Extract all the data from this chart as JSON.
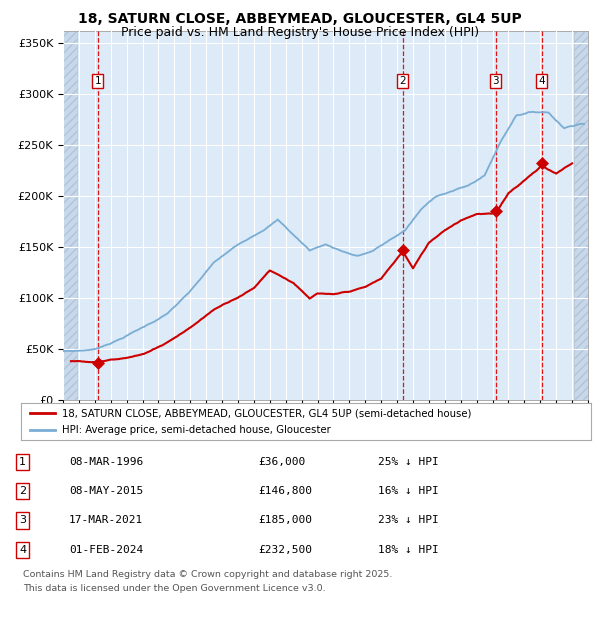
{
  "title_line1": "18, SATURN CLOSE, ABBEYMEAD, GLOUCESTER, GL4 5UP",
  "title_line2": "Price paid vs. HM Land Registry's House Price Index (HPI)",
  "title_fontsize": 10.0,
  "subtitle_fontsize": 9.0,
  "ylabel_ticks": [
    "£0",
    "£50K",
    "£100K",
    "£150K",
    "£200K",
    "£250K",
    "£300K",
    "£350K"
  ],
  "ylabel_values": [
    0,
    50000,
    100000,
    150000,
    200000,
    250000,
    300000,
    350000
  ],
  "ylim": [
    0,
    362000
  ],
  "xlim_start": 1994.0,
  "xlim_end": 2027.0,
  "sale_points": [
    {
      "label": "1",
      "date": 1996.19,
      "price": 36000,
      "text": "08-MAR-1996",
      "amount": "£36,000",
      "pct": "25% ↓ HPI"
    },
    {
      "label": "2",
      "date": 2015.36,
      "price": 146800,
      "text": "08-MAY-2015",
      "amount": "£146,800",
      "pct": "16% ↓ HPI"
    },
    {
      "label": "3",
      "date": 2021.21,
      "price": 185000,
      "text": "17-MAR-2021",
      "amount": "£185,000",
      "pct": "23% ↓ HPI"
    },
    {
      "label": "4",
      "date": 2024.08,
      "price": 232500,
      "text": "01-FEB-2024",
      "amount": "£232,500",
      "pct": "18% ↓ HPI"
    }
  ],
  "hpi_color": "#7aadd4",
  "price_color": "#cc0000",
  "marker_color": "#cc0000",
  "bg_color": "#ddeaf7",
  "grid_color": "#ffffff",
  "hatch_color": "#c8d8ea",
  "vline_color": "#dd0000",
  "label_bg": "#ffffff",
  "label_border": "#cc0000",
  "legend_label1": "18, SATURN CLOSE, ABBEYMEAD, GLOUCESTER, GL4 5UP (semi-detached house)",
  "legend_label2": "HPI: Average price, semi-detached house, Gloucester",
  "footer_line1": "Contains HM Land Registry data © Crown copyright and database right 2025.",
  "footer_line2": "This data is licensed under the Open Government Licence v3.0.",
  "hpi_waypoints_x": [
    1994.0,
    1995.0,
    1996.0,
    1997.5,
    1999.0,
    2000.5,
    2002.0,
    2003.5,
    2005.0,
    2006.5,
    2007.5,
    2008.5,
    2009.5,
    2010.5,
    2011.5,
    2012.5,
    2013.5,
    2014.5,
    2015.5,
    2016.5,
    2017.5,
    2018.5,
    2019.5,
    2020.5,
    2021.5,
    2022.5,
    2023.5,
    2024.5,
    2025.5,
    2026.5
  ],
  "hpi_waypoints_y": [
    48000,
    48500,
    50000,
    60000,
    72000,
    85000,
    107000,
    135000,
    152000,
    167000,
    178000,
    163000,
    148000,
    154000,
    148000,
    143000,
    148000,
    158000,
    168000,
    188000,
    202000,
    207000,
    212000,
    222000,
    255000,
    282000,
    285000,
    285000,
    270000,
    275000
  ],
  "price_waypoints_x": [
    1994.5,
    1996.19,
    1997.0,
    1998.0,
    1999.0,
    2000.5,
    2002.0,
    2003.5,
    2005.0,
    2006.0,
    2007.0,
    2008.5,
    2009.5,
    2010.0,
    2011.0,
    2012.0,
    2013.0,
    2014.0,
    2015.36,
    2016.0,
    2017.0,
    2018.0,
    2019.0,
    2020.0,
    2021.21,
    2022.0,
    2023.0,
    2024.08,
    2025.0,
    2026.0
  ],
  "price_waypoints_y": [
    38000,
    36000,
    40000,
    42000,
    45000,
    57000,
    72000,
    90000,
    103000,
    112000,
    130000,
    118000,
    102000,
    107000,
    105000,
    108000,
    112000,
    120000,
    146800,
    130000,
    155000,
    168000,
    178000,
    185000,
    185000,
    205000,
    218000,
    232500,
    225000,
    235000
  ]
}
